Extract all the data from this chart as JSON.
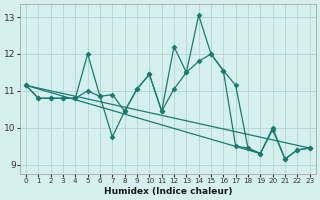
{
  "xlabel": "Humidex (Indice chaleur)",
  "xlim": [
    -0.5,
    23.5
  ],
  "ylim": [
    8.75,
    13.35
  ],
  "yticks": [
    9,
    10,
    11,
    12,
    13
  ],
  "xticks": [
    0,
    1,
    2,
    3,
    4,
    5,
    6,
    7,
    8,
    9,
    10,
    11,
    12,
    13,
    14,
    15,
    16,
    17,
    18,
    19,
    20,
    21,
    22,
    23
  ],
  "bg_color": "#d5efef",
  "grid_color": "#b8d8d8",
  "line_color": "#1a7a6e",
  "series": [
    {
      "x": [
        0,
        1,
        2,
        3,
        4,
        5,
        6,
        7,
        8,
        9,
        10,
        11,
        12,
        13,
        14,
        15,
        16,
        17,
        18,
        19,
        20,
        21,
        22,
        23
      ],
      "y": [
        11.15,
        10.8,
        10.8,
        10.8,
        10.8,
        12.0,
        10.85,
        10.9,
        10.45,
        11.05,
        11.45,
        10.45,
        12.2,
        11.5,
        13.05,
        12.0,
        11.55,
        11.15,
        9.45,
        9.3,
        9.95,
        9.15,
        9.4,
        9.45
      ],
      "has_marker": true
    },
    {
      "x": [
        0,
        1,
        2,
        3,
        4,
        5,
        6,
        7,
        8,
        9,
        10,
        11,
        12,
        13,
        14,
        15,
        16,
        17,
        18,
        19,
        20,
        21,
        22,
        23
      ],
      "y": [
        11.15,
        10.8,
        10.8,
        10.8,
        10.8,
        11.0,
        10.85,
        9.75,
        10.45,
        11.05,
        11.45,
        10.45,
        11.05,
        11.5,
        11.8,
        12.0,
        11.55,
        9.5,
        9.45,
        9.3,
        10.0,
        9.15,
        9.4,
        9.45
      ],
      "has_marker": true
    },
    {
      "x": [
        0,
        23
      ],
      "y": [
        11.15,
        9.45
      ],
      "has_marker": false
    },
    {
      "x": [
        0,
        19
      ],
      "y": [
        11.15,
        9.3
      ],
      "has_marker": false
    }
  ],
  "marker": "D",
  "markersize": 2.5,
  "linewidth": 0.9
}
